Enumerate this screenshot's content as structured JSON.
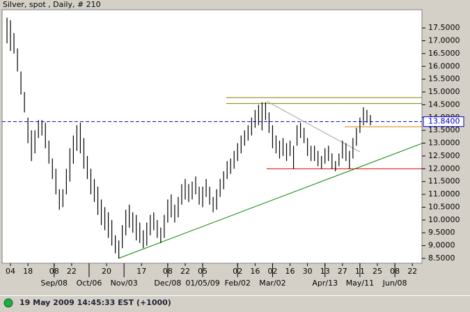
{
  "chart_data": {
    "type": "ohlc",
    "title": "Silver, spot , Daily, # 210",
    "color": "#000000",
    "x": [
      -2,
      0,
      2,
      4,
      6,
      8,
      10,
      12,
      14,
      16,
      18,
      20,
      22,
      24,
      26,
      28,
      30,
      32,
      34,
      36,
      38,
      40,
      42,
      44,
      46,
      48,
      50,
      52,
      54,
      56,
      58,
      60,
      62,
      64,
      66,
      68,
      70,
      72,
      74,
      76,
      78,
      80,
      82,
      84,
      86,
      88,
      90,
      92,
      94,
      96,
      98,
      100,
      102,
      104,
      106,
      108,
      110,
      112,
      114,
      116,
      118,
      120,
      122,
      124,
      126,
      128,
      130,
      132,
      134,
      136,
      138,
      140,
      142,
      144,
      146,
      148,
      150,
      152,
      154,
      156,
      158,
      160,
      162,
      164,
      166,
      168,
      170,
      172,
      174,
      176,
      178,
      180,
      182,
      184,
      186,
      188,
      190,
      192,
      194,
      196,
      198,
      200,
      202,
      204,
      206
    ],
    "high": [
      17.9,
      17.8,
      17.3,
      16.7,
      15.8,
      15.0,
      14.0,
      13.5,
      13.5,
      13.9,
      13.9,
      13.8,
      13.1,
      12.4,
      12.0,
      11.2,
      11.2,
      12.0,
      12.8,
      13.3,
      13.7,
      13.8,
      13.2,
      12.5,
      12.0,
      11.6,
      11.3,
      10.8,
      10.5,
      10.3,
      10.0,
      9.4,
      9.2,
      9.8,
      10.4,
      10.6,
      10.3,
      10.2,
      9.9,
      9.6,
      9.9,
      10.2,
      10.3,
      10.0,
      9.7,
      10.2,
      10.8,
      11.0,
      10.6,
      10.9,
      11.4,
      11.6,
      11.4,
      11.5,
      11.7,
      11.3,
      11.3,
      11.6,
      11.3,
      10.9,
      11.2,
      11.6,
      11.9,
      12.3,
      12.4,
      12.7,
      13.0,
      13.3,
      13.5,
      13.7,
      14.0,
      14.3,
      14.5,
      14.6,
      14.6,
      14.2,
      13.7,
      13.3,
      13.1,
      13.2,
      13.0,
      13.1,
      12.9,
      13.7,
      13.8,
      13.6,
      13.2,
      12.9,
      12.9,
      12.7,
      12.5,
      12.8,
      12.9,
      12.6,
      12.3,
      12.6,
      13.1,
      13.0,
      12.7,
      13.2,
      13.6,
      14.0,
      14.4,
      14.3,
      14.1
    ],
    "low": [
      16.9,
      16.6,
      16.5,
      15.8,
      14.9,
      14.2,
      13.0,
      12.3,
      12.6,
      13.2,
      13.3,
      12.8,
      12.2,
      11.6,
      11.0,
      10.4,
      10.5,
      11.0,
      11.5,
      12.2,
      12.7,
      12.6,
      12.0,
      11.6,
      11.0,
      10.7,
      10.2,
      9.8,
      9.6,
      9.3,
      9.0,
      8.7,
      8.5,
      8.9,
      9.4,
      9.7,
      9.5,
      9.2,
      9.1,
      8.9,
      9.0,
      9.4,
      9.6,
      9.3,
      9.1,
      9.3,
      9.9,
      10.1,
      9.9,
      10.1,
      10.6,
      10.8,
      10.7,
      10.8,
      11.0,
      10.6,
      10.5,
      10.9,
      10.6,
      10.3,
      10.4,
      10.9,
      11.2,
      11.6,
      11.8,
      12.0,
      12.3,
      12.6,
      12.9,
      13.1,
      13.3,
      13.6,
      13.7,
      13.5,
      13.9,
      13.4,
      12.8,
      12.6,
      12.4,
      12.5,
      12.3,
      12.5,
      12.0,
      12.9,
      13.2,
      13.0,
      12.5,
      12.3,
      12.3,
      12.1,
      12.0,
      12.2,
      12.3,
      12.0,
      11.9,
      12.1,
      12.4,
      12.3,
      12.0,
      12.4,
      12.9,
      13.4,
      13.7,
      13.8,
      13.7
    ],
    "xlim": [
      -4.8,
      235.5
    ],
    "ylim": [
      8.31,
      18.21
    ],
    "yticks": [
      {
        "value": 8.5,
        "label": "8.5000"
      },
      {
        "value": 9,
        "label": "9.0000"
      },
      {
        "value": 9.5,
        "label": "9.5000"
      },
      {
        "value": 10,
        "label": "10.0000"
      },
      {
        "value": 10.5,
        "label": "10.5000"
      },
      {
        "value": 11,
        "label": "11.0000"
      },
      {
        "value": 11.5,
        "label": "11.5000"
      },
      {
        "value": 12,
        "label": "12.0000"
      },
      {
        "value": 12.5,
        "label": "12.5000"
      },
      {
        "value": 13,
        "label": "13.0000"
      },
      {
        "value": 13.5,
        "label": "13.5000"
      },
      {
        "value": 14,
        "label": "14.0000"
      },
      {
        "value": 14.5,
        "label": "14.5000"
      },
      {
        "value": 15,
        "label": "15.0000"
      },
      {
        "value": 15.5,
        "label": "15.5000"
      },
      {
        "value": 16,
        "label": "16.0000"
      },
      {
        "value": 16.5,
        "label": "16.5000"
      },
      {
        "value": 17,
        "label": "17.0000"
      },
      {
        "value": 17.5,
        "label": "17.5000"
      }
    ],
    "xticks": [
      {
        "value": 0,
        "label": "04"
      },
      {
        "value": 10,
        "label": "18"
      },
      {
        "value": 25,
        "label": "08"
      },
      {
        "value": 35,
        "label": "22"
      },
      {
        "value": 55,
        "label": "20"
      },
      {
        "value": 75,
        "label": "17"
      },
      {
        "value": 90,
        "label": "08"
      },
      {
        "value": 100,
        "label": "22"
      },
      {
        "value": 110,
        "label": "05"
      },
      {
        "value": 130,
        "label": "02"
      },
      {
        "value": 140,
        "label": "16"
      },
      {
        "value": 150,
        "label": "02"
      },
      {
        "value": 160,
        "label": "16"
      },
      {
        "value": 170,
        "label": "30"
      },
      {
        "value": 180,
        "label": "13"
      },
      {
        "value": 190,
        "label": "27"
      },
      {
        "value": 200,
        "label": "11"
      },
      {
        "value": 210,
        "label": "25"
      },
      {
        "value": 220,
        "label": "08"
      },
      {
        "value": 230,
        "label": "22"
      }
    ],
    "month_ticks": [
      {
        "value": 25,
        "label": "Sep/08"
      },
      {
        "value": 45,
        "label": "Oct/06"
      },
      {
        "value": 65,
        "label": "Nov/03"
      },
      {
        "value": 90,
        "label": "Dec/08"
      },
      {
        "value": 110,
        "label": "01/05/09"
      },
      {
        "value": 130,
        "label": "Feb/02"
      },
      {
        "value": 150,
        "label": "Mar/02"
      },
      {
        "value": 180,
        "label": "Apr/13"
      },
      {
        "value": 200,
        "label": "May/11"
      },
      {
        "value": 220,
        "label": "Jun/08"
      }
    ],
    "price_marker": {
      "value": 13.84,
      "label": "13.8400",
      "color": "#0000cc"
    },
    "lines": [
      {
        "x": [
          -4.8,
          235.5
        ],
        "y": [
          13.84,
          13.84
        ],
        "color": "#0000cc",
        "style": "dashed"
      },
      {
        "x": [
          123.5,
          235.5
        ],
        "y": [
          14.78,
          14.78
        ],
        "color": "#808000",
        "style": "solid"
      },
      {
        "x": [
          123.5,
          235.5
        ],
        "y": [
          14.55,
          14.55
        ],
        "color": "#808000",
        "style": "solid"
      },
      {
        "x": [
          191.2,
          235.5
        ],
        "y": [
          13.64,
          13.64
        ],
        "color": "#e08000",
        "style": "solid"
      },
      {
        "x": [
          146.6,
          235.5
        ],
        "y": [
          12,
          12
        ],
        "color": "#dd0000",
        "style": "solid"
      },
      {
        "x": [
          61.8,
          235.5
        ],
        "y": [
          8.5,
          12.99
        ],
        "color": "#008000",
        "style": "solid"
      },
      {
        "x": [
          146.6,
          200
        ],
        "y": [
          14.64,
          12.66
        ],
        "color": "#a0a0a0",
        "style": "solid"
      }
    ],
    "timestamp": "19 May 2009 14:45:33  EST (+1000)"
  }
}
